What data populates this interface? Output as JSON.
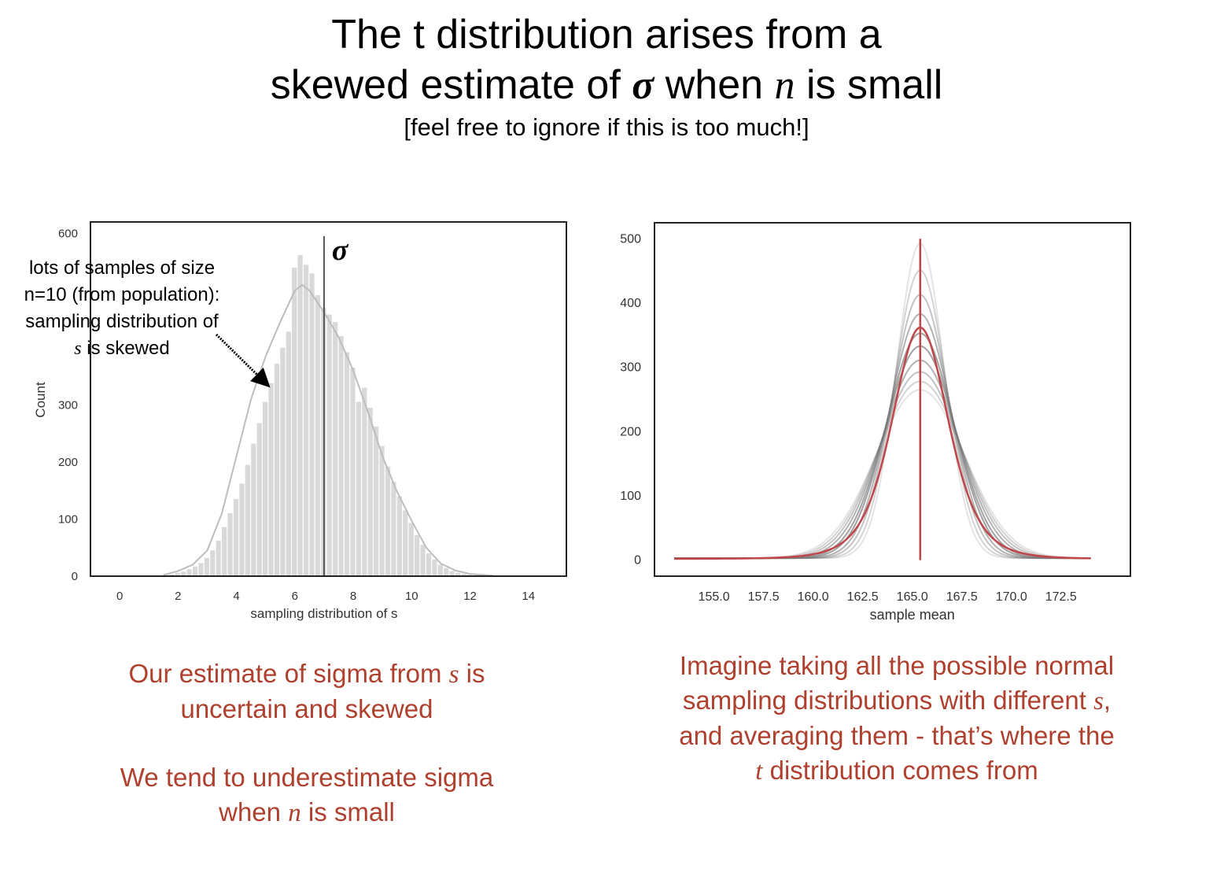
{
  "slide": {
    "title_line1": "The t distribution arises from a",
    "title_line2_a": "skewed estimate of",
    "title_line2_sigma": "σ",
    "title_line2_b": "when",
    "title_line2_n": "n",
    "title_line2_c": "is small",
    "subtitle": "[feel free to ignore if this is too much!]"
  },
  "annotation": {
    "line1": "lots of samples of size",
    "line2": "n=10 (from population):",
    "line3": "sampling distribution of",
    "line4_s": "s",
    "line4_rest": " is skewed"
  },
  "captions": {
    "left1_a": "Our estimate of sigma from ",
    "left1_s": "s",
    "left1_b": " is",
    "left1_line2": "uncertain and skewed",
    "left2_line1": "We tend to underestimate sigma",
    "left2_a": "when ",
    "left2_n": "n",
    "left2_b": " is small",
    "right_line1": "Imagine taking all the possible normal",
    "right_line2_a": "sampling distributions with different ",
    "right_line2_s": "s",
    "right_line2_b": ",",
    "right_line3": "and averaging them - that’s where the",
    "right_line4_t": "t",
    "right_line4_rest": " distribution comes from"
  },
  "colors": {
    "caption": "#b0402e",
    "hist_bar": "#d9d9d9",
    "kde": "#bdbdbd",
    "sigma_line": "#555555",
    "t_curve": "#c0464a",
    "mean_line": "#c0464a"
  },
  "chart_data": [
    {
      "type": "bar",
      "title": "",
      "xlabel": "sampling distribution of s",
      "ylabel": "Count",
      "xlim": [
        -1,
        15.3
      ],
      "ylim": [
        0,
        620
      ],
      "xticks": [
        "0",
        "2",
        "4",
        "6",
        "8",
        "10",
        "12",
        "14"
      ],
      "yticks": [
        "0",
        "100",
        "200",
        "300",
        "600"
      ],
      "bin_width": 0.2,
      "bin_centers": [
        1.6,
        1.8,
        2.0,
        2.2,
        2.4,
        2.6,
        2.8,
        3.0,
        3.2,
        3.4,
        3.6,
        3.8,
        4.0,
        4.2,
        4.4,
        4.6,
        4.8,
        5.0,
        5.2,
        5.4,
        5.6,
        5.8,
        6.0,
        6.2,
        6.4,
        6.6,
        6.8,
        7.0,
        7.2,
        7.4,
        7.6,
        7.8,
        8.0,
        8.2,
        8.4,
        8.6,
        8.8,
        9.0,
        9.2,
        9.4,
        9.6,
        9.8,
        10.0,
        10.2,
        10.4,
        10.6,
        10.8,
        11.0,
        11.2,
        11.4,
        11.6,
        11.8,
        12.0,
        12.2,
        12.4,
        12.6
      ],
      "values": [
        2,
        3,
        6,
        8,
        12,
        17,
        23,
        32,
        45,
        62,
        86,
        110,
        135,
        162,
        195,
        232,
        268,
        305,
        338,
        372,
        400,
        428,
        540,
        562,
        545,
        530,
        492,
        470,
        458,
        445,
        420,
        392,
        365,
        305,
        330,
        295,
        262,
        228,
        192,
        165,
        140,
        115,
        93,
        72,
        55,
        40,
        29,
        20,
        14,
        9,
        6,
        4,
        3,
        2,
        1,
        1
      ],
      "kde": {
        "x": [
          1.5,
          2,
          2.5,
          3,
          3.5,
          4,
          4.5,
          5,
          5.5,
          6,
          6.25,
          6.5,
          7,
          7.5,
          8,
          8.5,
          9,
          9.5,
          10,
          10.5,
          11,
          11.5,
          12,
          12.8
        ],
        "y": [
          2,
          9,
          20,
          45,
          110,
          210,
          310,
          385,
          445,
          500,
          510,
          500,
          462,
          418,
          360,
          288,
          210,
          148,
          97,
          50,
          22,
          10,
          4,
          1
        ]
      },
      "reference_line": {
        "x": 7.0,
        "label": "σ"
      }
    },
    {
      "type": "line",
      "title": "",
      "xlabel": "sample mean",
      "ylabel": "",
      "xlim": [
        152.0,
        176.0
      ],
      "ylim": [
        -25,
        525
      ],
      "xticks": [
        "155.0",
        "157.5",
        "160.0",
        "162.5",
        "165.0",
        "167.5",
        "170.0",
        "172.5"
      ],
      "yticks": [
        "0",
        "100",
        "200",
        "300",
        "400",
        "500"
      ],
      "mean": 165.4,
      "x_range": [
        153.0,
        174.0
      ],
      "normal_curves_peak": [
        490,
        448,
        410,
        380,
        350,
        330,
        308,
        290,
        275,
        262
      ],
      "t_curve_peak": 360,
      "mean_line": {
        "x": 165.4,
        "ymin": 0,
        "ymax": 500
      }
    }
  ]
}
